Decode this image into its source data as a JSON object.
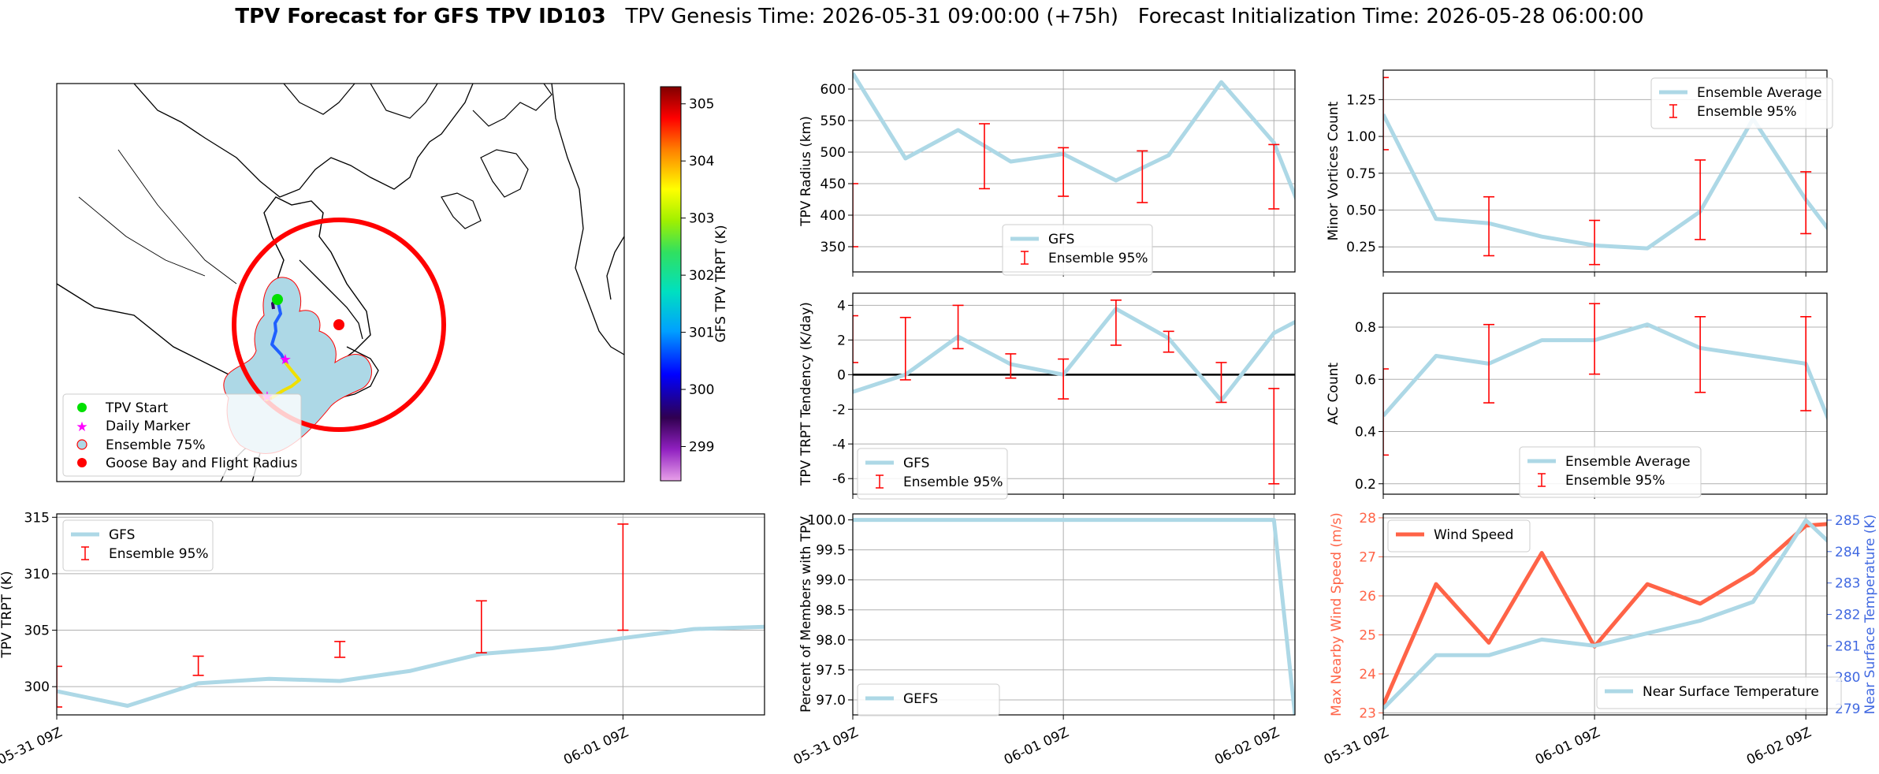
{
  "title": {
    "bold": "TPV Forecast for GFS TPV ID103",
    "genesis": "TPV Genesis Time: 2026-05-31 09:00:00 (+75h)",
    "init": "Forecast Initialization Time: 2026-05-28 06:00:00"
  },
  "colors": {
    "gfs_line": "#add8e6",
    "error_bar": "#ff0000",
    "wind": "#ff6347",
    "temp_axis": "#4169e1",
    "land": "#add8e6",
    "circle": "#ff0000"
  },
  "time_ticks": [
    "05-31 09Z",
    "06-01 09Z",
    "06-02 09Z"
  ],
  "map": {
    "legend": [
      "TPV Start",
      "Daily Marker",
      "Ensemble 75%",
      "Goose Bay and Flight Radius"
    ],
    "colorbar": {
      "label": "GFS TPV TRPT (K)",
      "ticks": [
        299,
        300,
        301,
        302,
        303,
        304,
        305
      ],
      "range": [
        298.4,
        305.3
      ]
    }
  },
  "chart_data": [
    {
      "id": "radius",
      "type": "line",
      "xlabel": "",
      "ylabel": "TPV Radius (km)",
      "xlim": [
        0,
        2.1
      ],
      "ylim": [
        310,
        630
      ],
      "yticks": [
        350,
        400,
        450,
        500,
        550,
        600
      ],
      "legend": "bottom-center",
      "series": [
        {
          "name": "GFS",
          "x": [
            0,
            0.25,
            0.5,
            0.75,
            1,
            1.25,
            1.5,
            1.75,
            2,
            2.25
          ],
          "values": [
            625,
            490,
            535,
            485,
            497,
            455,
            495,
            611,
            515,
            305
          ]
        }
      ],
      "errors": {
        "name": "Ensemble 95%",
        "x": [
          0,
          0.625,
          1,
          1.375,
          2
        ],
        "lo": [
          350,
          442,
          430,
          420,
          410
        ],
        "hi": [
          450,
          545,
          507,
          502,
          512
        ]
      }
    },
    {
      "id": "minor",
      "type": "line",
      "ylabel": "Minor Vortices Count",
      "xlim": [
        0,
        2.1
      ],
      "ylim": [
        0.08,
        1.45
      ],
      "yticks": [
        0.25,
        0.5,
        0.75,
        1.0,
        1.25
      ],
      "legend": "top-right",
      "series": [
        {
          "name": "Ensemble Average",
          "x": [
            0,
            0.25,
            0.5,
            0.75,
            1,
            1.25,
            1.5,
            1.75,
            2,
            2.25
          ],
          "values": [
            1.15,
            0.44,
            0.41,
            0.32,
            0.26,
            0.24,
            0.49,
            1.12,
            0.57,
            0.1
          ]
        }
      ],
      "errors": {
        "name": "Ensemble 95%",
        "x": [
          0,
          0.5,
          1,
          1.5,
          2
        ],
        "lo": [
          0.91,
          0.19,
          0.13,
          0.3,
          0.34
        ],
        "hi": [
          1.4,
          0.59,
          0.43,
          0.84,
          0.76
        ]
      }
    },
    {
      "id": "tendency",
      "type": "line",
      "ylabel": "TPV TRPT Tendency (K/day)",
      "xlim": [
        0,
        2.1
      ],
      "ylim": [
        -6.9,
        4.7
      ],
      "yticks": [
        -6,
        -4,
        -2,
        0,
        2,
        4
      ],
      "legend": "bottom-left",
      "zero_line": true,
      "series": [
        {
          "name": "GFS",
          "x": [
            0,
            0.25,
            0.5,
            0.75,
            1,
            1.25,
            1.5,
            1.75,
            2,
            2.25
          ],
          "values": [
            -1.0,
            0.0,
            2.2,
            0.6,
            0.0,
            3.8,
            2.1,
            -1.5,
            2.4,
            4.0
          ]
        }
      ],
      "errors": {
        "name": "Ensemble 95%",
        "x": [
          0,
          0.25,
          0.5,
          0.75,
          1,
          1.25,
          1.5,
          1.75,
          2,
          2.25
        ],
        "lo": [
          0.7,
          -0.3,
          1.5,
          -0.2,
          -1.4,
          1.7,
          1.3,
          -1.6,
          -6.3,
          0.3
        ],
        "hi": [
          3.4,
          3.3,
          4.0,
          1.2,
          0.9,
          4.3,
          2.5,
          0.7,
          -0.8,
          4.0
        ]
      }
    },
    {
      "id": "ac",
      "type": "line",
      "ylabel": "AC Count",
      "xlim": [
        0,
        2.1
      ],
      "ylim": [
        0.16,
        0.93
      ],
      "yticks": [
        0.2,
        0.4,
        0.6,
        0.8
      ],
      "legend": "bottom-center",
      "series": [
        {
          "name": "Ensemble Average",
          "x": [
            0,
            0.25,
            0.5,
            0.75,
            1,
            1.25,
            1.5,
            1.75,
            2,
            2.25
          ],
          "values": [
            0.46,
            0.69,
            0.66,
            0.75,
            0.75,
            0.81,
            0.72,
            0.69,
            0.66,
            0.16
          ]
        }
      ],
      "errors": {
        "name": "Ensemble 95%",
        "x": [
          0,
          0.5,
          1,
          1.5,
          2
        ],
        "lo": [
          0.31,
          0.51,
          0.62,
          0.55,
          0.48
        ],
        "hi": [
          0.64,
          0.81,
          0.89,
          0.84,
          0.84
        ]
      }
    },
    {
      "id": "trpt",
      "type": "line",
      "ylabel": "TPV TRPT (K)",
      "xlim": [
        0,
        1.25
      ],
      "ylim": [
        297.5,
        315.3
      ],
      "yticks": [
        300,
        305,
        310,
        315
      ],
      "legend": "top-left",
      "series": [
        {
          "name": "GFS",
          "x": [
            0,
            0.125,
            0.25,
            0.375,
            0.5,
            0.625,
            0.75,
            0.875,
            1,
            1.125,
            1.25
          ],
          "values": [
            299.6,
            298.3,
            300.3,
            300.7,
            300.5,
            301.4,
            302.9,
            303.4,
            304.3,
            305.1,
            305.3
          ]
        }
      ],
      "errors": {
        "name": "Ensemble 95%",
        "x": [
          0,
          0.25,
          0.5,
          0.75,
          1
        ],
        "lo": [
          298.2,
          301.0,
          302.6,
          303.0,
          305.0
        ],
        "hi": [
          301.8,
          302.7,
          304.0,
          307.6,
          314.4
        ]
      }
    },
    {
      "id": "percent",
      "type": "line",
      "ylabel": "Percent of Members with TPV",
      "xlim": [
        0,
        2.1
      ],
      "ylim": [
        96.75,
        100.1
      ],
      "yticks": [
        97.0,
        97.5,
        98.0,
        98.5,
        99.0,
        99.5,
        100.0
      ],
      "legend": "bottom-left",
      "series": [
        {
          "name": "GEFS",
          "x": [
            0,
            0.25,
            0.5,
            0.75,
            1,
            1.25,
            1.5,
            1.75,
            2,
            2.1
          ],
          "values": [
            100,
            100,
            100,
            100,
            100,
            100,
            100,
            100,
            100,
            96.75
          ]
        }
      ]
    },
    {
      "id": "wind",
      "type": "line",
      "ylabel": "Max Nearby Wind Speed (m/s)",
      "ylabel2": "Near Surface Temperature (K)",
      "xlim": [
        0,
        2.1
      ],
      "ylim": [
        22.95,
        28.1
      ],
      "yticks": [
        23,
        24,
        25,
        26,
        27,
        28
      ],
      "ylim2": [
        278.8,
        285.2
      ],
      "yticks2": [
        279,
        280,
        281,
        282,
        283,
        284,
        285
      ],
      "series": [
        {
          "name": "Wind Speed",
          "x": [
            0,
            0.25,
            0.5,
            0.75,
            1,
            1.25,
            1.5,
            1.75,
            2,
            2.25
          ],
          "values": [
            23.2,
            26.3,
            24.8,
            27.1,
            24.7,
            26.3,
            25.8,
            26.6,
            27.8,
            27.9
          ]
        },
        {
          "name": "Near Surface Temperature",
          "axis": "right",
          "x": [
            0,
            0.25,
            0.5,
            0.75,
            1,
            1.25,
            1.5,
            1.75,
            2,
            2.25
          ],
          "values": [
            279.0,
            280.7,
            280.7,
            281.2,
            281.0,
            281.4,
            281.8,
            282.4,
            285.0,
            283.4
          ]
        }
      ]
    }
  ]
}
